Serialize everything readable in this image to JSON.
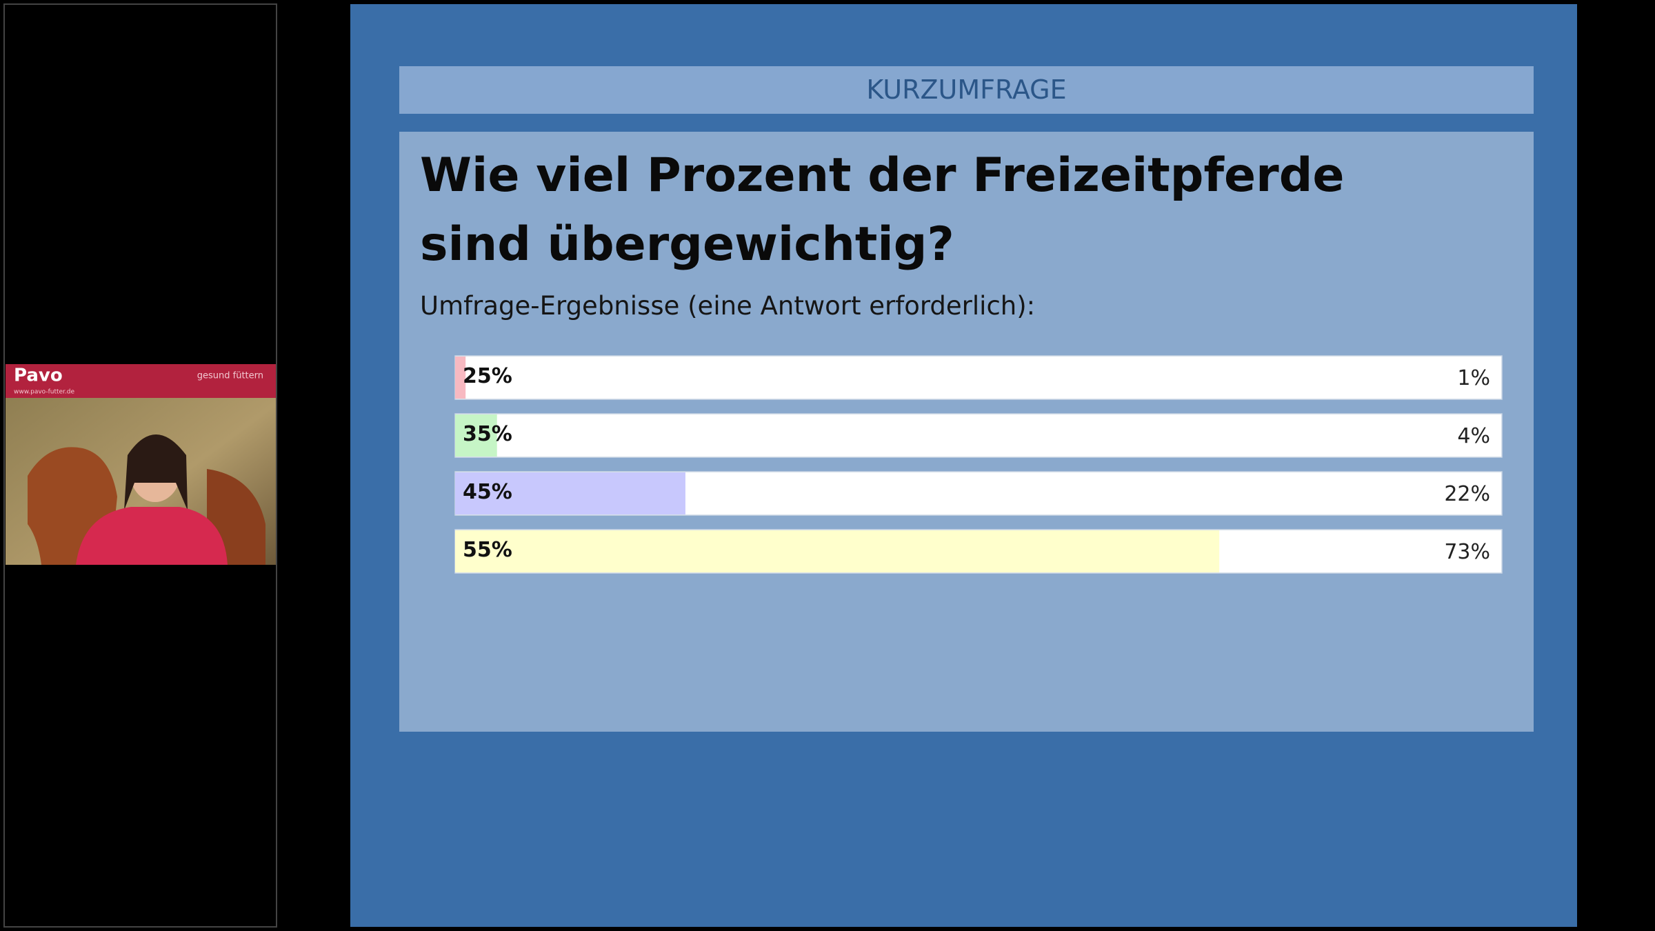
{
  "webcam": {
    "logo": "Pavo",
    "tagline": "gesund füttern",
    "url": "www.pavo-futter.de"
  },
  "chart_data": {
    "type": "bar",
    "orientation": "horizontal",
    "header": "KURZUMFRAGE",
    "title": "Wie viel Prozent der Freizeitpferde sind übergewichtig?",
    "subtitle": "Umfrage-Ergebnisse (eine Antwort erforderlich):",
    "categories": [
      "25%",
      "35%",
      "45%",
      "55%"
    ],
    "values": [
      1,
      4,
      22,
      73
    ],
    "value_labels": [
      "1%",
      "4%",
      "22%",
      "73%"
    ],
    "colors": [
      "#f7b9c1",
      "#c6f5c6",
      "#c8c8fd",
      "#ffffcc"
    ],
    "xlim": [
      0,
      100
    ]
  }
}
